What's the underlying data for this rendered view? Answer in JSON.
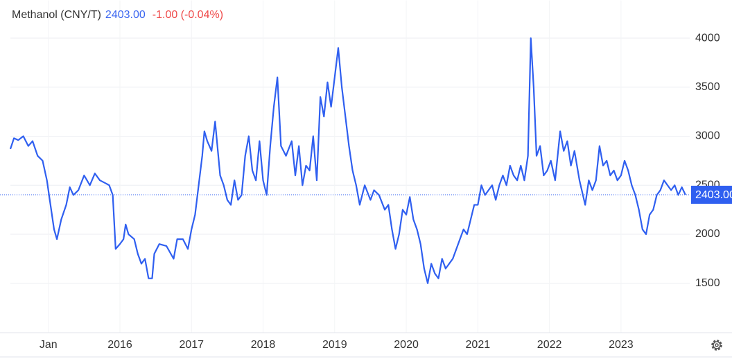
{
  "chart_data": {
    "type": "line",
    "title": "Methanol (CNY/T)",
    "price": "2403.00",
    "change": "-1.00 (-0.04%)",
    "xlim": [
      2014.47,
      2023.96
    ],
    "ylim": [
      1000,
      4300
    ],
    "xticks": [
      {
        "value": 2015,
        "label": "Jan"
      },
      2016,
      2017,
      2018,
      2019,
      2020,
      2021,
      2022,
      2023
    ],
    "yticks": [
      1500,
      2000,
      2500,
      3000,
      3500,
      4000
    ],
    "grid": true,
    "series": [
      {
        "color": "#2f5ff0",
        "x": [
          2014.47,
          2014.52,
          2014.58,
          2014.65,
          2014.72,
          2014.78,
          2014.85,
          2014.92,
          2014.98,
          2015.03,
          2015.08,
          2015.12,
          2015.18,
          2015.25,
          2015.3,
          2015.35,
          2015.42,
          2015.5,
          2015.58,
          2015.65,
          2015.72,
          2015.8,
          2015.85,
          2015.9,
          2015.94,
          2016.0,
          2016.05,
          2016.08,
          2016.12,
          2016.2,
          2016.25,
          2016.3,
          2016.35,
          2016.4,
          2016.45,
          2016.48,
          2016.55,
          2016.65,
          2016.75,
          2016.8,
          2016.88,
          2016.95,
          2017.0,
          2017.05,
          2017.1,
          2017.15,
          2017.18,
          2017.22,
          2017.28,
          2017.33,
          2017.4,
          2017.45,
          2017.5,
          2017.55,
          2017.6,
          2017.65,
          2017.7,
          2017.75,
          2017.8,
          2017.85,
          2017.9,
          2017.95,
          2018.0,
          2018.05,
          2018.1,
          2018.15,
          2018.2,
          2018.25,
          2018.32,
          2018.4,
          2018.45,
          2018.5,
          2018.55,
          2018.6,
          2018.65,
          2018.7,
          2018.75,
          2018.8,
          2018.85,
          2018.9,
          2018.95,
          2019.0,
          2019.05,
          2019.1,
          2019.15,
          2019.2,
          2019.25,
          2019.3,
          2019.35,
          2019.42,
          2019.5,
          2019.55,
          2019.62,
          2019.7,
          2019.75,
          2019.8,
          2019.85,
          2019.9,
          2019.95,
          2020.0,
          2020.05,
          2020.1,
          2020.15,
          2020.2,
          2020.25,
          2020.3,
          2020.35,
          2020.4,
          2020.45,
          2020.5,
          2020.55,
          2020.6,
          2020.65,
          2020.7,
          2020.75,
          2020.8,
          2020.85,
          2020.9,
          2020.95,
          2021.0,
          2021.05,
          2021.1,
          2021.15,
          2021.2,
          2021.25,
          2021.3,
          2021.35,
          2021.4,
          2021.45,
          2021.5,
          2021.55,
          2021.6,
          2021.65,
          2021.7,
          2021.74,
          2021.78,
          2021.82,
          2021.87,
          2021.92,
          2021.97,
          2022.02,
          2022.08,
          2022.15,
          2022.2,
          2022.25,
          2022.3,
          2022.35,
          2022.42,
          2022.5,
          2022.55,
          2022.6,
          2022.65,
          2022.7,
          2022.75,
          2022.8,
          2022.85,
          2022.9,
          2022.95,
          2023.0,
          2023.05,
          2023.1,
          2023.15,
          2023.2,
          2023.25,
          2023.3,
          2023.35,
          2023.4,
          2023.45,
          2023.5,
          2023.55,
          2023.6,
          2023.65,
          2023.7,
          2023.75,
          2023.8,
          2023.85,
          2023.9
        ],
        "values": [
          2870,
          2980,
          2960,
          3000,
          2900,
          2950,
          2800,
          2750,
          2550,
          2300,
          2050,
          1950,
          2150,
          2300,
          2480,
          2400,
          2450,
          2600,
          2500,
          2620,
          2550,
          2520,
          2500,
          2400,
          1850,
          1900,
          1950,
          2100,
          2000,
          1950,
          1800,
          1700,
          1750,
          1550,
          1550,
          1800,
          1900,
          1880,
          1750,
          1950,
          1950,
          1850,
          2050,
          2200,
          2500,
          2800,
          3050,
          2950,
          2850,
          3150,
          2600,
          2500,
          2350,
          2300,
          2550,
          2350,
          2400,
          2800,
          3000,
          2650,
          2550,
          2950,
          2550,
          2400,
          2900,
          3300,
          3600,
          2900,
          2800,
          2950,
          2600,
          2900,
          2500,
          2700,
          2650,
          3000,
          2550,
          3400,
          3200,
          3550,
          3300,
          3600,
          3900,
          3500,
          3200,
          2900,
          2650,
          2500,
          2300,
          2500,
          2350,
          2450,
          2400,
          2250,
          2300,
          2050,
          1850,
          2000,
          2250,
          2200,
          2380,
          2150,
          2050,
          1900,
          1650,
          1500,
          1700,
          1600,
          1550,
          1750,
          1650,
          1700,
          1750,
          1850,
          1950,
          2050,
          2000,
          2150,
          2300,
          2300,
          2500,
          2400,
          2450,
          2500,
          2350,
          2500,
          2600,
          2500,
          2700,
          2600,
          2550,
          2700,
          2550,
          2800,
          4000,
          3500,
          2800,
          2900,
          2600,
          2650,
          2750,
          2550,
          3050,
          2850,
          2950,
          2700,
          2850,
          2550,
          2300,
          2550,
          2450,
          2550,
          2900,
          2700,
          2750,
          2600,
          2650,
          2550,
          2600,
          2750,
          2650,
          2500,
          2400,
          2250,
          2050,
          2000,
          2200,
          2250,
          2400,
          2450,
          2550,
          2500,
          2450,
          2500,
          2400,
          2480,
          2403
        ]
      }
    ]
  }
}
